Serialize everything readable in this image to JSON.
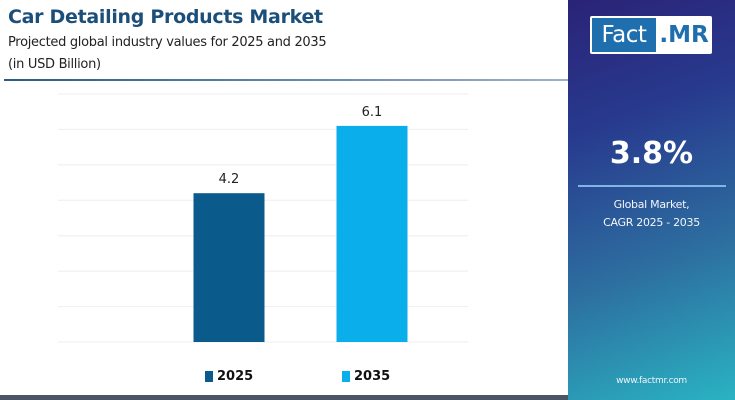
{
  "header": {
    "title": "Car Detailing Products Market",
    "subtitle": "Projected global industry values for 2025 and 2035",
    "unit": "(in USD Billion)"
  },
  "side_panel": {
    "logo_left": "Fact",
    "logo_right": ".MR",
    "cagr_value": "3.8%",
    "cagr_label_line1": "Global Market,",
    "cagr_label_line2": "CAGR 2025 - 2035",
    "website": "www.factmr.com"
  },
  "colors": {
    "title": "#1b4f7a",
    "bar_2025": "#0b5a8c",
    "bar_2035": "#0aaeea",
    "logo_blue": "#1f6fae"
  },
  "chart_data": {
    "type": "bar",
    "title": "Car Detailing Products Market",
    "subtitle": "Projected global industry values for 2025 and 2035",
    "ylabel": "USD Billion",
    "xlabel": "",
    "categories": [
      "2025",
      "2035"
    ],
    "values": [
      4.2,
      6.1
    ],
    "data_labels": [
      "4.2",
      "6.1"
    ],
    "bar_colors": [
      "#0b5a8c",
      "#0aaeea"
    ],
    "ylim": [
      0,
      7
    ],
    "grid": true,
    "gridline_count": 8,
    "legend": [
      {
        "label": "2025",
        "color": "#0b5a8c"
      },
      {
        "label": "2035",
        "color": "#0aaeea"
      }
    ],
    "legend_position": "bottom"
  }
}
